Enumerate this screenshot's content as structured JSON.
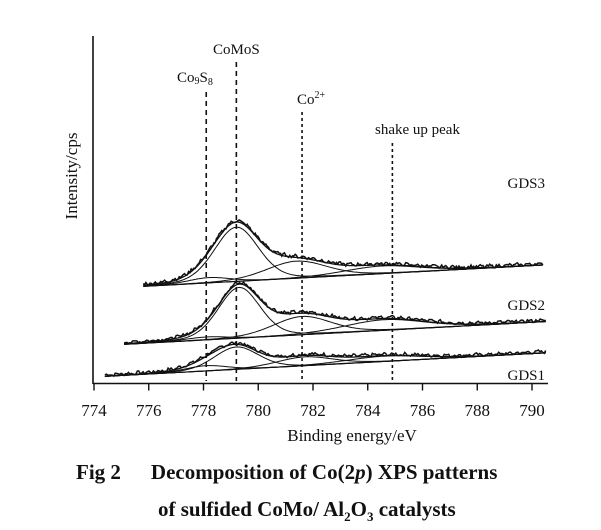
{
  "chart_data": {
    "type": "line",
    "title": "",
    "xlabel": "Binding energy/eV",
    "ylabel": "Intensity/cps",
    "xlim": [
      774,
      791
    ],
    "xticks": [
      774,
      776,
      778,
      780,
      782,
      784,
      786,
      788,
      790
    ],
    "yticks": [],
    "grid": false,
    "legend": "none",
    "reference_lines": [
      {
        "label": "Co9S8",
        "label_main": "Co",
        "label_sub1": "9",
        "label_mid": "S",
        "label_sub2": "8",
        "x": 778.1
      },
      {
        "label": "CoMoS",
        "x": 779.2
      },
      {
        "label": "Co2+",
        "label_main": "Co",
        "label_sup": "2+",
        "x": 781.6
      },
      {
        "label": "shake up peak",
        "x": 784.9
      }
    ],
    "series": [
      {
        "name": "GDS1",
        "x_range": [
          774.4,
          790.5
        ],
        "offset": 0,
        "background": {
          "start": 0.2,
          "end": 1.3
        },
        "components": [
          {
            "name": "Co9S8",
            "center": 778.1,
            "height": 0.9,
            "fwhm": 1.8
          },
          {
            "name": "CoMoS",
            "center": 779.2,
            "height": 3.8,
            "fwhm": 1.9
          },
          {
            "name": "Co2+",
            "center": 781.7,
            "height": 1.5,
            "fwhm": 2.4
          },
          {
            "name": "shake up peak",
            "center": 784.6,
            "height": 0.9,
            "fwhm": 3.2
          }
        ]
      },
      {
        "name": "GDS2",
        "x_range": [
          775.1,
          790.5
        ],
        "offset": 5.5,
        "background": {
          "start": 0.0,
          "end": 1.1
        },
        "components": [
          {
            "name": "Co9S8",
            "center": 778.1,
            "height": 0.5,
            "fwhm": 1.8
          },
          {
            "name": "CoMoS",
            "center": 779.3,
            "height": 8.6,
            "fwhm": 1.8
          },
          {
            "name": "Co2+",
            "center": 781.6,
            "height": 3.1,
            "fwhm": 2.5
          },
          {
            "name": "shake up peak",
            "center": 784.6,
            "height": 1.8,
            "fwhm": 3.4
          }
        ]
      },
      {
        "name": "GDS3",
        "x_range": [
          775.8,
          790.4
        ],
        "offset": 15.2,
        "background": {
          "start": 0.0,
          "end": 1.0
        },
        "components": [
          {
            "name": "Co9S8",
            "center": 778.2,
            "height": 0.9,
            "fwhm": 1.8
          },
          {
            "name": "CoMoS",
            "center": 779.2,
            "height": 9.2,
            "fwhm": 1.9
          },
          {
            "name": "Co2+",
            "center": 781.4,
            "height": 2.9,
            "fwhm": 2.6
          },
          {
            "name": "shake up peak",
            "center": 784.5,
            "height": 1.3,
            "fwhm": 3.2
          }
        ]
      }
    ]
  },
  "caption": {
    "line1_prefix": "Fig 2",
    "line1_text_a": "Decomposition of Co",
    "line1_paren_open": "(",
    "line1_2": "2",
    "line1_p": "p",
    "line1_paren_close": ")",
    "line1_text_b": " XPS patterns",
    "line2_text_a": "of sulfided CoMo/ Al",
    "line2_sub1": "2",
    "line2_mid": "O",
    "line2_sub2": "3",
    "line2_text_b": " catalysts"
  }
}
